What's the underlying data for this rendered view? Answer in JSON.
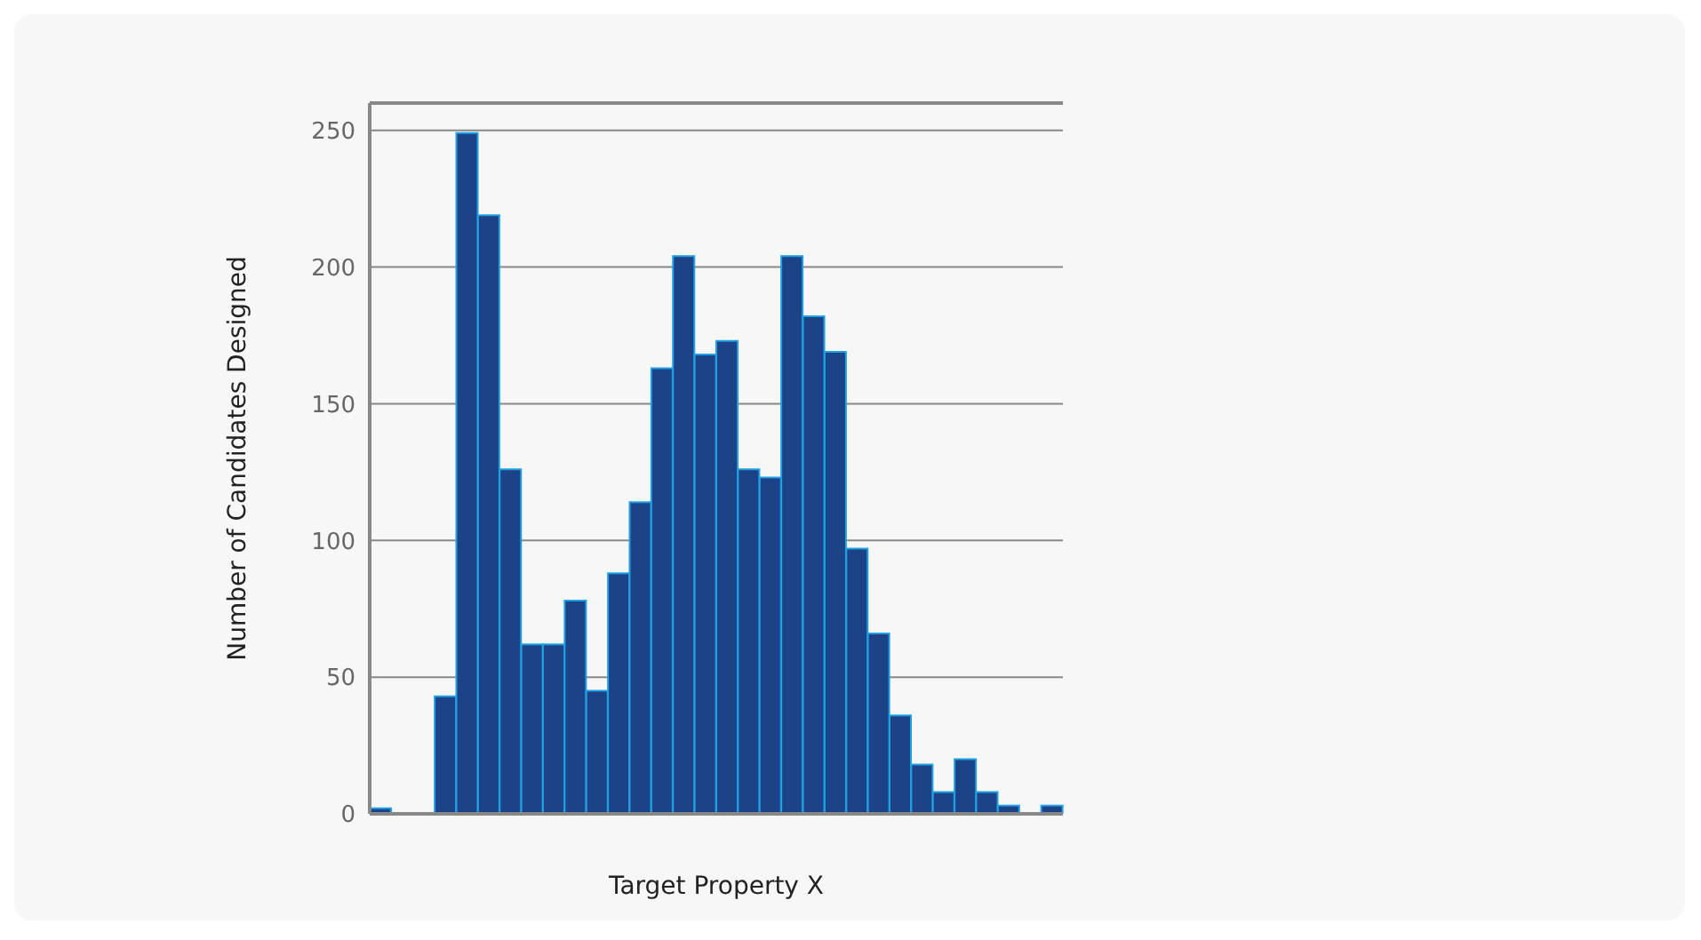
{
  "chart_data": {
    "type": "bar",
    "xlabel": "Target Property X",
    "ylabel": "Number of Candidates Designed",
    "categories": [
      null,
      null,
      null,
      null,
      null,
      null,
      null,
      null,
      null,
      null,
      null,
      null,
      null,
      null,
      null,
      null,
      null,
      null,
      null,
      null,
      null,
      null,
      null,
      null,
      null,
      null,
      null,
      null,
      null,
      null,
      null,
      null
    ],
    "values": [
      2,
      0,
      0,
      43,
      249,
      219,
      126,
      62,
      62,
      78,
      45,
      88,
      114,
      163,
      204,
      168,
      173,
      126,
      123,
      204,
      182,
      169,
      97,
      66,
      36,
      18,
      8,
      20,
      8,
      3,
      0,
      3
    ],
    "color": "#1c4288",
    "ylim": [
      0,
      260
    ],
    "yticks": [
      0,
      50,
      100,
      150,
      200,
      250
    ],
    "grid": "y"
  }
}
